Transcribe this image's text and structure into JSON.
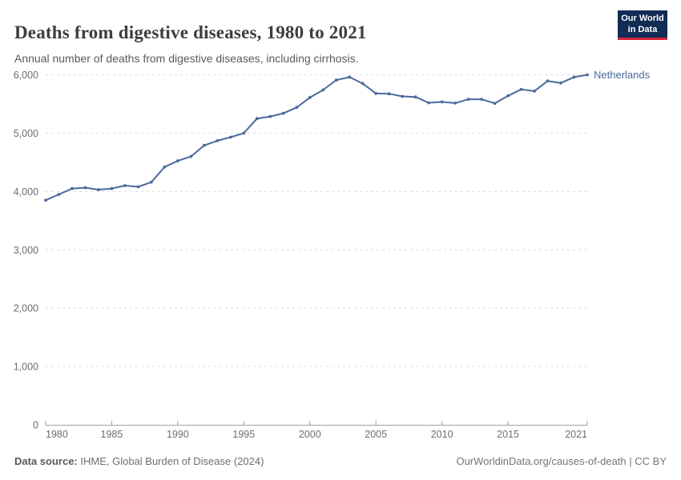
{
  "header": {
    "title": "Deaths from digestive diseases, 1980 to 2021",
    "subtitle": "Annual number of deaths from digestive diseases, including cirrhosis."
  },
  "logo": {
    "line1": "Our World",
    "line2": "in Data",
    "bg_color": "#112c55",
    "accent_color": "#d7263d"
  },
  "footer": {
    "source_label": "Data source:",
    "source_text": " IHME, Global Burden of Disease (2024)",
    "right_text": "OurWorldinData.org/causes-of-death | CC BY"
  },
  "chart_data": {
    "type": "line",
    "title": "Deaths from digestive diseases, 1980 to 2021",
    "subtitle": "Annual number of deaths from digestive diseases, including cirrhosis.",
    "xlabel": "",
    "ylabel": "",
    "xlim": [
      1980,
      2021
    ],
    "ylim": [
      0,
      6000
    ],
    "grid": "horizontal-dashed",
    "legend": "end-of-line label",
    "yticks": [
      0,
      1000,
      2000,
      3000,
      4000,
      5000,
      6000
    ],
    "ytick_labels": [
      "0",
      "1,000",
      "2,000",
      "3,000",
      "4,000",
      "5,000",
      "6,000"
    ],
    "xticks": [
      1980,
      1985,
      1990,
      1995,
      2000,
      2005,
      2010,
      2015,
      2021
    ],
    "colors": {
      "grid": "#dddddd",
      "axis": "#a1a1a1",
      "tick_text": "#6e6e6e"
    },
    "series": [
      {
        "name": "Netherlands",
        "color": "#4C6A9C",
        "x": [
          1980,
          1981,
          1982,
          1983,
          1984,
          1985,
          1986,
          1987,
          1988,
          1989,
          1990,
          1991,
          1992,
          1993,
          1994,
          1995,
          1996,
          1997,
          1998,
          1999,
          2000,
          2001,
          2002,
          2003,
          2004,
          2005,
          2006,
          2007,
          2008,
          2009,
          2010,
          2011,
          2012,
          2013,
          2014,
          2015,
          2016,
          2017,
          2018,
          2019,
          2020,
          2021
        ],
        "values": [
          3850,
          3950,
          4050,
          4065,
          4030,
          4050,
          4100,
          4080,
          4160,
          4420,
          4525,
          4600,
          4790,
          4870,
          4930,
          5000,
          5250,
          5285,
          5340,
          5440,
          5610,
          5740,
          5910,
          5960,
          5850,
          5680,
          5675,
          5630,
          5620,
          5520,
          5535,
          5515,
          5580,
          5580,
          5510,
          5640,
          5750,
          5720,
          5895,
          5860,
          5960,
          6000
        ]
      }
    ]
  }
}
